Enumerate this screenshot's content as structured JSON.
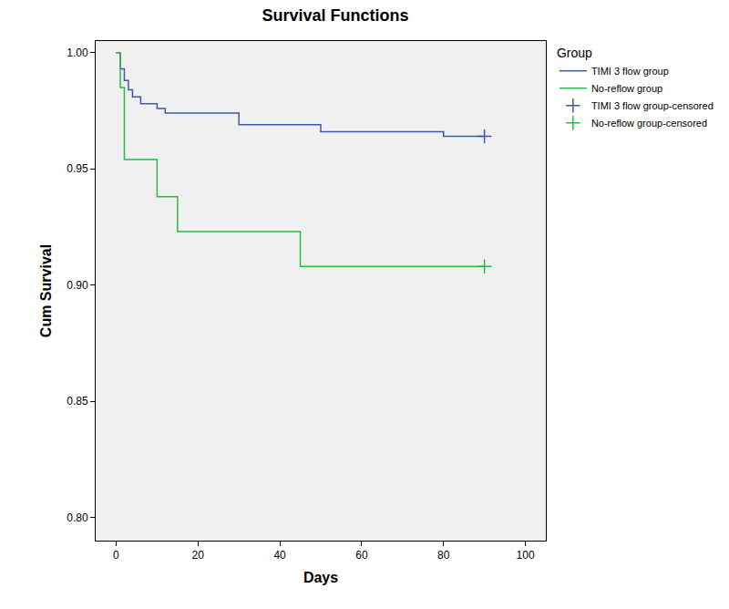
{
  "chart_data": {
    "type": "line",
    "title": "Survival Functions",
    "x_label": "Days",
    "y_label": "Cum Survival",
    "legend_title": "Group",
    "legend": "top right",
    "grid": false,
    "line_style": "step",
    "xlim": [
      -5,
      105
    ],
    "xticks": [
      0,
      20,
      40,
      60,
      80,
      100
    ],
    "ylim": [
      0.79,
      1.005
    ],
    "yticks": [
      {
        "value": 0.8,
        "label": "0.80"
      },
      0.85,
      {
        "value": 0.9,
        "label": "0.90"
      },
      0.95,
      {
        "value": 1.0,
        "label": "1.00"
      }
    ],
    "series": [
      {
        "name": "TIMI 3 flow group",
        "color": "#3e58ac",
        "type": "line",
        "x": [
          0,
          1,
          2,
          3,
          4,
          6,
          10,
          12,
          30,
          50,
          80,
          90
        ],
        "values": [
          1.0,
          0.993,
          0.988,
          0.984,
          0.981,
          0.978,
          0.976,
          0.974,
          0.969,
          0.966,
          0.964,
          0.964
        ]
      },
      {
        "name": "No-reflow group",
        "color": "#2eb848",
        "type": "line",
        "x": [
          0,
          1,
          2,
          10,
          15,
          45,
          90
        ],
        "values": [
          1.0,
          0.985,
          0.954,
          0.938,
          0.923,
          0.908,
          0.908
        ]
      },
      {
        "name": "TIMI 3 flow group-censored",
        "color": "#3e58ac",
        "type": "scatter",
        "marker": "cross",
        "x": [
          90
        ],
        "values": [
          0.964
        ]
      },
      {
        "name": "No-reflow group-censored",
        "color": "#2eb848",
        "type": "scatter",
        "marker": "cross",
        "x": [
          90
        ],
        "values": [
          0.908
        ]
      }
    ]
  }
}
